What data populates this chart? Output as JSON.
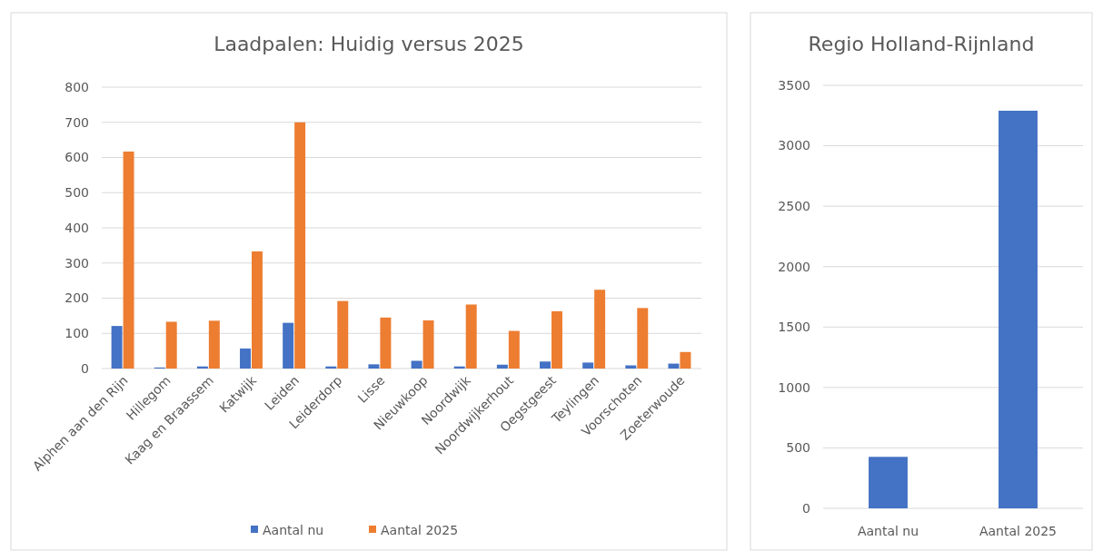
{
  "chart_data": [
    {
      "type": "bar",
      "title": "Laadpalen: Huidig versus 2025",
      "categories": [
        "Alphen aan den Rijn",
        "Hillegom",
        "Kaag en Braassem",
        "Katwijk",
        "Leiden",
        "Leiderdorp",
        "Lisse",
        "Nieuwkoop",
        "Noordwijk",
        "Noordwijkerhout",
        "Oegstgeest",
        "Teylingen",
        "Voorschoten",
        "Zoeterwoude"
      ],
      "series": [
        {
          "name": "Aantal nu",
          "color": "#4472c4",
          "values": [
            121,
            3,
            6,
            57,
            130,
            6,
            12,
            22,
            6,
            11,
            20,
            17,
            9,
            14
          ]
        },
        {
          "name": "Aantal 2025",
          "color": "#ed7d31",
          "values": [
            617,
            133,
            136,
            333,
            700,
            192,
            145,
            137,
            182,
            107,
            163,
            224,
            172,
            47
          ]
        }
      ],
      "ylim": [
        0,
        800
      ],
      "yticks": [
        0,
        100,
        200,
        300,
        400,
        500,
        600,
        700,
        800
      ],
      "grid": "y",
      "legend": "bottom"
    },
    {
      "type": "bar",
      "title": "Regio Holland-Rijnland",
      "categories": [
        "Aantal nu",
        "Aantal 2025"
      ],
      "series": [
        {
          "color": "#4472c4",
          "values": [
            426,
            3290
          ]
        }
      ],
      "ylim": [
        0,
        3500
      ],
      "yticks": [
        0,
        500,
        1000,
        1500,
        2000,
        2500,
        3000,
        3500
      ],
      "grid": "y"
    }
  ]
}
